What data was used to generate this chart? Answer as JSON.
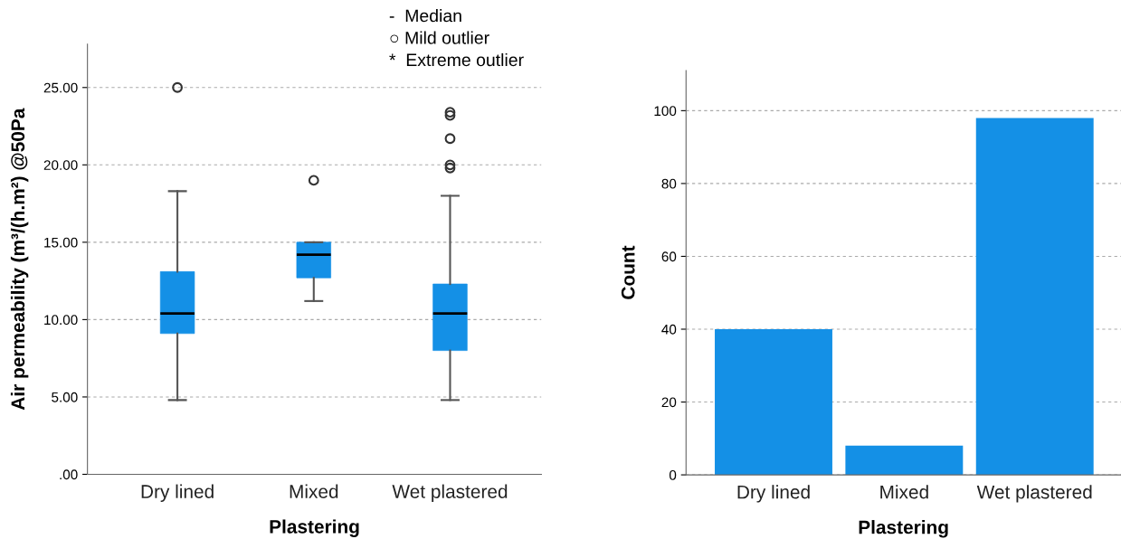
{
  "chart_data": [
    {
      "type": "box",
      "categories": [
        "Dry lined",
        "Mixed",
        "Wet plastered"
      ],
      "xlabel": "Plastering",
      "ylabel": "Air permeability (m³/(h.m²) @50Pa",
      "color": "#1490e6",
      "boxes": [
        {
          "low": 4.8,
          "q1": 9.1,
          "median": 10.4,
          "q3": 13.1,
          "high": 18.3,
          "outliers": [
            25.0
          ]
        },
        {
          "low": 11.2,
          "q1": 12.7,
          "median": 14.2,
          "q3": 15.0,
          "high": 15.0,
          "outliers": [
            19.0
          ]
        },
        {
          "low": 4.8,
          "q1": 8.0,
          "median": 10.4,
          "q3": 12.3,
          "high": 18.0,
          "outliers": [
            23.4,
            23.2,
            21.7,
            20.0,
            19.8
          ]
        }
      ],
      "ylim": [
        0,
        27.8
      ],
      "yticks": [
        {
          "value": 0,
          "label": ".00"
        },
        {
          "value": 5,
          "label": "5.00"
        },
        {
          "value": 10,
          "label": "10.00"
        },
        {
          "value": 15,
          "label": "15.00"
        },
        {
          "value": 20,
          "label": "20.00"
        },
        {
          "value": 25,
          "label": "25.00"
        }
      ],
      "grid": "y",
      "annotations": [
        "-  Median",
        "○ Mild outlier",
        "*  Extreme outlier"
      ]
    },
    {
      "type": "bar",
      "categories": [
        "Dry lined",
        "Mixed",
        "Wet plastered"
      ],
      "values": [
        40,
        8,
        98
      ],
      "color": "#1490e6",
      "xlabel": "Plastering",
      "ylabel": "Count",
      "ylim": [
        0,
        111
      ],
      "yticks": [
        0,
        20,
        40,
        60,
        80,
        100
      ],
      "grid": "y"
    }
  ]
}
